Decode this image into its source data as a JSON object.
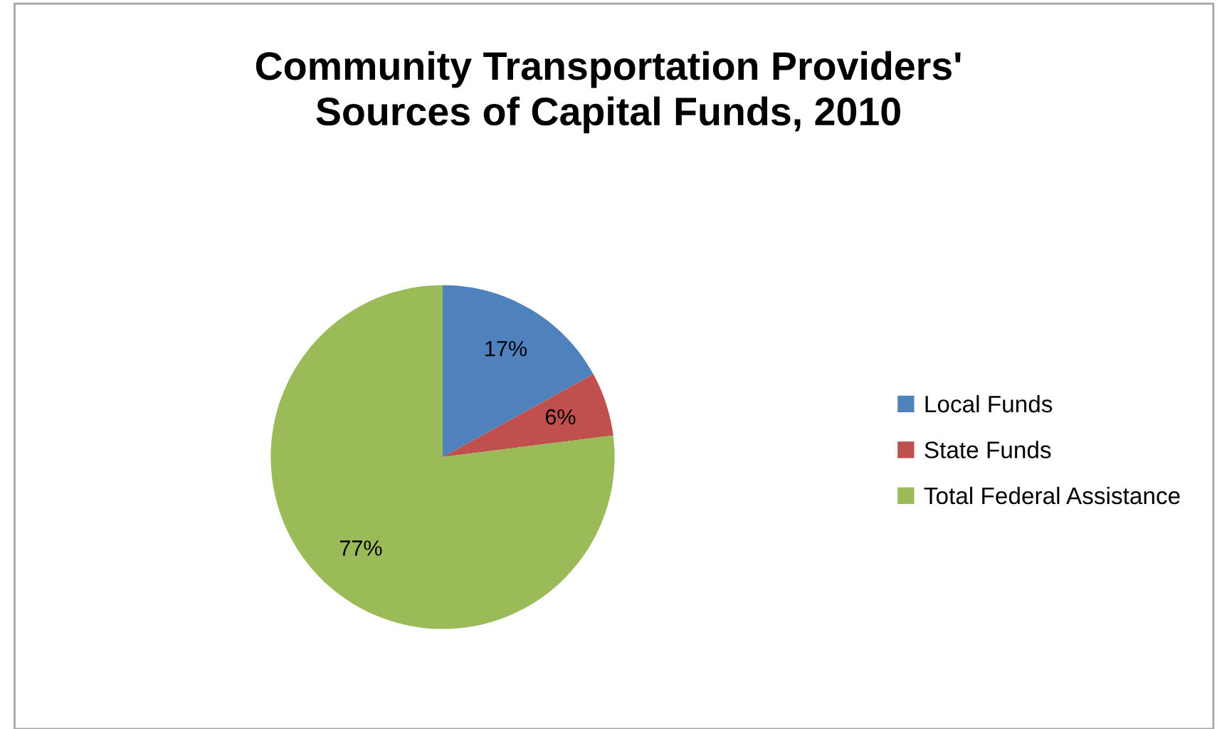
{
  "chart_data": {
    "type": "pie",
    "title": "Community Transportation Providers'\nSources of Capital Funds, 2010",
    "categories": [
      "Local Funds",
      "State Funds",
      "Total Federal Assistance"
    ],
    "values": [
      17,
      6,
      77
    ],
    "colors": [
      "#4f81bd",
      "#c0504d",
      "#9bbb59"
    ],
    "value_labels": [
      "17%",
      "6%",
      "77%"
    ],
    "legend": "right"
  }
}
